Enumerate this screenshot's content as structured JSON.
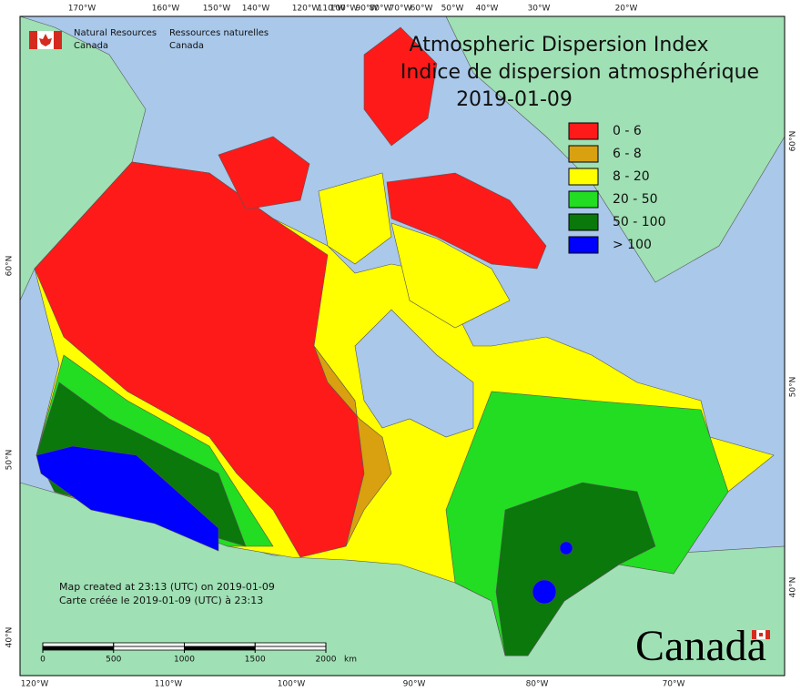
{
  "credit": {
    "en": [
      "Natural Resources",
      "Canada"
    ],
    "fr": [
      "Ressources naturelles",
      "Canada"
    ]
  },
  "title": [
    "Atmospheric Dispersion Index",
    "Indice de dispersion atmosphérique",
    "2019-01-09"
  ],
  "legend": [
    {
      "label": "0 - 6",
      "color": "#ff1a1a"
    },
    {
      "label": "6 - 8",
      "color": "#d9a010"
    },
    {
      "label": "8 - 20",
      "color": "#ffff00"
    },
    {
      "label": "20 - 50",
      "color": "#22dd22"
    },
    {
      "label": "50 - 100",
      "color": "#0a780a"
    },
    {
      "label": "> 100",
      "color": "#0000ff"
    }
  ],
  "graticule": {
    "top": [
      "170°W",
      "160°W",
      "150°W",
      "140°W",
      "120°W",
      "110°W",
      "100°W",
      "90°W",
      "80°W",
      "70°W",
      "60°W",
      "50°W",
      "40°W",
      "30°W",
      "20°W"
    ],
    "bottom": [
      "120°W",
      "110°W",
      "100°W",
      "90°W",
      "80°W",
      "70°W"
    ],
    "left": [
      "60°N",
      "50°N",
      "40°N"
    ],
    "right": [
      "60°N",
      "50°N",
      "40°N"
    ]
  },
  "note": [
    "Map created at 23:13 (UTC) on 2019-01-09",
    "Carte créée le 2019-01-09 (UTC) à 23:13"
  ],
  "scale": {
    "ticks": [
      0,
      500,
      1000,
      1500,
      2000
    ],
    "unit": "km"
  },
  "wordmark": "Canada"
}
